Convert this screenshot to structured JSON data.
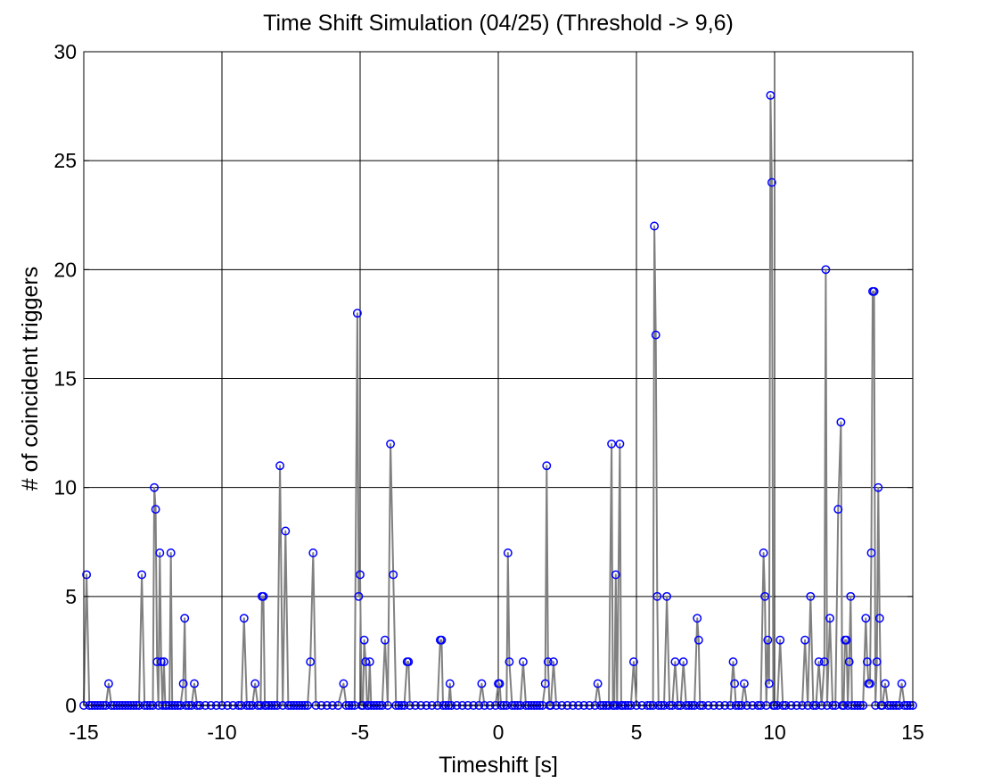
{
  "chart_data": {
    "type": "line",
    "title": "Time Shift Simulation (04/25) (Threshold -> 9,6)",
    "xlabel": "Timeshift [s]",
    "ylabel": "# of coincident triggers",
    "xlim": [
      -15,
      15
    ],
    "ylim": [
      0,
      30
    ],
    "x_ticks": [
      -15,
      -10,
      -5,
      0,
      5,
      10,
      15
    ],
    "y_ticks": [
      0,
      5,
      10,
      15,
      20,
      25,
      30
    ],
    "x_tick_labels": [
      "-15",
      "-10",
      "-5",
      "0",
      "5",
      "10",
      "15"
    ],
    "y_tick_labels": [
      "0",
      "5",
      "10",
      "15",
      "20",
      "25",
      "30"
    ],
    "grid": true,
    "legend": "none",
    "colors": {
      "line": "#808080",
      "marker": "#0000ff",
      "grid": "#000000"
    },
    "series": [
      {
        "marker": "circle",
        "points": [
          [
            -15.0,
            0
          ],
          [
            -14.9,
            6
          ],
          [
            -14.8,
            0
          ],
          [
            -14.7,
            0
          ],
          [
            -14.6,
            0
          ],
          [
            -14.5,
            0
          ],
          [
            -14.4,
            0
          ],
          [
            -14.3,
            0
          ],
          [
            -14.2,
            0
          ],
          [
            -14.1,
            1
          ],
          [
            -14.0,
            0
          ],
          [
            -13.9,
            0
          ],
          [
            -13.8,
            0
          ],
          [
            -13.7,
            0
          ],
          [
            -13.6,
            0
          ],
          [
            -13.5,
            0
          ],
          [
            -13.4,
            0
          ],
          [
            -13.3,
            0
          ],
          [
            -13.2,
            0
          ],
          [
            -13.1,
            0
          ],
          [
            -13.0,
            0
          ],
          [
            -12.9,
            6
          ],
          [
            -12.8,
            0
          ],
          [
            -12.7,
            0
          ],
          [
            -12.6,
            0
          ],
          [
            -12.5,
            0
          ],
          [
            -12.45,
            10
          ],
          [
            -12.4,
            9
          ],
          [
            -12.35,
            2
          ],
          [
            -12.3,
            0
          ],
          [
            -12.25,
            7
          ],
          [
            -12.2,
            2
          ],
          [
            -12.15,
            0
          ],
          [
            -12.1,
            2
          ],
          [
            -12.05,
            0
          ],
          [
            -12.0,
            0
          ],
          [
            -11.9,
            0
          ],
          [
            -11.85,
            7
          ],
          [
            -11.8,
            0
          ],
          [
            -11.7,
            0
          ],
          [
            -11.6,
            0
          ],
          [
            -11.5,
            0
          ],
          [
            -11.4,
            1
          ],
          [
            -11.35,
            4
          ],
          [
            -11.3,
            0
          ],
          [
            -11.2,
            0
          ],
          [
            -11.1,
            0
          ],
          [
            -11.0,
            1
          ],
          [
            -10.9,
            0
          ],
          [
            -10.8,
            0
          ],
          [
            -10.6,
            0
          ],
          [
            -10.4,
            0
          ],
          [
            -10.2,
            0
          ],
          [
            -10.0,
            0
          ],
          [
            -9.8,
            0
          ],
          [
            -9.6,
            0
          ],
          [
            -9.4,
            0
          ],
          [
            -9.3,
            0
          ],
          [
            -9.2,
            4
          ],
          [
            -9.1,
            0
          ],
          [
            -9.0,
            0
          ],
          [
            -8.9,
            0
          ],
          [
            -8.8,
            1
          ],
          [
            -8.7,
            0
          ],
          [
            -8.6,
            0
          ],
          [
            -8.55,
            5
          ],
          [
            -8.5,
            5
          ],
          [
            -8.45,
            0
          ],
          [
            -8.4,
            0
          ],
          [
            -8.3,
            0
          ],
          [
            -8.2,
            0
          ],
          [
            -8.1,
            0
          ],
          [
            -8.0,
            0
          ],
          [
            -7.9,
            11
          ],
          [
            -7.8,
            0
          ],
          [
            -7.7,
            8
          ],
          [
            -7.6,
            0
          ],
          [
            -7.5,
            0
          ],
          [
            -7.4,
            0
          ],
          [
            -7.3,
            0
          ],
          [
            -7.2,
            0
          ],
          [
            -7.1,
            0
          ],
          [
            -7.0,
            0
          ],
          [
            -6.9,
            0
          ],
          [
            -6.8,
            2
          ],
          [
            -6.7,
            7
          ],
          [
            -6.6,
            0
          ],
          [
            -6.4,
            0
          ],
          [
            -6.2,
            0
          ],
          [
            -6.0,
            0
          ],
          [
            -5.8,
            0
          ],
          [
            -5.6,
            1
          ],
          [
            -5.5,
            0
          ],
          [
            -5.4,
            0
          ],
          [
            -5.3,
            0
          ],
          [
            -5.2,
            0
          ],
          [
            -5.1,
            18
          ],
          [
            -5.05,
            5
          ],
          [
            -5.0,
            6
          ],
          [
            -4.95,
            0
          ],
          [
            -4.9,
            0
          ],
          [
            -4.85,
            3
          ],
          [
            -4.8,
            2
          ],
          [
            -4.75,
            0
          ],
          [
            -4.7,
            0
          ],
          [
            -4.65,
            2
          ],
          [
            -4.6,
            0
          ],
          [
            -4.5,
            0
          ],
          [
            -4.4,
            0
          ],
          [
            -4.3,
            0
          ],
          [
            -4.2,
            0
          ],
          [
            -4.1,
            3
          ],
          [
            -4.0,
            0
          ],
          [
            -3.9,
            12
          ],
          [
            -3.8,
            6
          ],
          [
            -3.7,
            0
          ],
          [
            -3.6,
            0
          ],
          [
            -3.5,
            0
          ],
          [
            -3.4,
            0
          ],
          [
            -3.3,
            2
          ],
          [
            -3.25,
            2
          ],
          [
            -3.2,
            0
          ],
          [
            -3.0,
            0
          ],
          [
            -2.8,
            0
          ],
          [
            -2.6,
            0
          ],
          [
            -2.4,
            0
          ],
          [
            -2.2,
            0
          ],
          [
            -2.1,
            3
          ],
          [
            -2.05,
            3
          ],
          [
            -2.0,
            0
          ],
          [
            -1.9,
            0
          ],
          [
            -1.8,
            0
          ],
          [
            -1.75,
            1
          ],
          [
            -1.7,
            0
          ],
          [
            -1.5,
            0
          ],
          [
            -1.3,
            0
          ],
          [
            -1.1,
            0
          ],
          [
            -0.9,
            0
          ],
          [
            -0.7,
            0
          ],
          [
            -0.6,
            1
          ],
          [
            -0.5,
            0
          ],
          [
            -0.3,
            0
          ],
          [
            -0.1,
            0
          ],
          [
            0.0,
            1
          ],
          [
            0.05,
            1
          ],
          [
            0.1,
            0
          ],
          [
            0.2,
            0
          ],
          [
            0.3,
            0
          ],
          [
            0.35,
            7
          ],
          [
            0.4,
            2
          ],
          [
            0.5,
            0
          ],
          [
            0.6,
            0
          ],
          [
            0.7,
            0
          ],
          [
            0.8,
            0
          ],
          [
            0.9,
            2
          ],
          [
            1.0,
            0
          ],
          [
            1.1,
            0
          ],
          [
            1.2,
            0
          ],
          [
            1.3,
            0
          ],
          [
            1.4,
            0
          ],
          [
            1.5,
            0
          ],
          [
            1.6,
            0
          ],
          [
            1.7,
            1
          ],
          [
            1.75,
            11
          ],
          [
            1.8,
            2
          ],
          [
            1.85,
            0
          ],
          [
            1.9,
            0
          ],
          [
            2.0,
            2
          ],
          [
            2.1,
            0
          ],
          [
            2.3,
            0
          ],
          [
            2.5,
            0
          ],
          [
            2.7,
            0
          ],
          [
            2.9,
            0
          ],
          [
            3.1,
            0
          ],
          [
            3.3,
            0
          ],
          [
            3.5,
            0
          ],
          [
            3.6,
            1
          ],
          [
            3.7,
            0
          ],
          [
            3.8,
            0
          ],
          [
            3.9,
            0
          ],
          [
            4.0,
            0
          ],
          [
            4.1,
            12
          ],
          [
            4.15,
            0
          ],
          [
            4.2,
            0
          ],
          [
            4.25,
            6
          ],
          [
            4.3,
            0
          ],
          [
            4.4,
            12
          ],
          [
            4.45,
            0
          ],
          [
            4.5,
            0
          ],
          [
            4.6,
            0
          ],
          [
            4.7,
            0
          ],
          [
            4.8,
            0
          ],
          [
            4.9,
            2
          ],
          [
            5.0,
            0
          ],
          [
            5.2,
            0
          ],
          [
            5.4,
            0
          ],
          [
            5.5,
            0
          ],
          [
            5.6,
            0
          ],
          [
            5.65,
            22
          ],
          [
            5.7,
            17
          ],
          [
            5.75,
            5
          ],
          [
            5.8,
            0
          ],
          [
            5.9,
            0
          ],
          [
            6.0,
            0
          ],
          [
            6.1,
            5
          ],
          [
            6.2,
            0
          ],
          [
            6.3,
            0
          ],
          [
            6.4,
            2
          ],
          [
            6.5,
            0
          ],
          [
            6.6,
            0
          ],
          [
            6.7,
            2
          ],
          [
            6.8,
            0
          ],
          [
            6.9,
            0
          ],
          [
            7.0,
            0
          ],
          [
            7.1,
            0
          ],
          [
            7.2,
            4
          ],
          [
            7.25,
            3
          ],
          [
            7.3,
            0
          ],
          [
            7.4,
            0
          ],
          [
            7.6,
            0
          ],
          [
            7.8,
            0
          ],
          [
            8.0,
            0
          ],
          [
            8.2,
            0
          ],
          [
            8.4,
            0
          ],
          [
            8.5,
            2
          ],
          [
            8.55,
            1
          ],
          [
            8.6,
            0
          ],
          [
            8.7,
            0
          ],
          [
            8.8,
            0
          ],
          [
            8.9,
            1
          ],
          [
            9.0,
            0
          ],
          [
            9.2,
            0
          ],
          [
            9.4,
            0
          ],
          [
            9.5,
            0
          ],
          [
            9.6,
            7
          ],
          [
            9.65,
            5
          ],
          [
            9.7,
            0
          ],
          [
            9.75,
            3
          ],
          [
            9.8,
            1
          ],
          [
            9.85,
            28
          ],
          [
            9.9,
            24
          ],
          [
            9.95,
            0
          ],
          [
            10.0,
            0
          ],
          [
            10.1,
            0
          ],
          [
            10.2,
            3
          ],
          [
            10.3,
            0
          ],
          [
            10.4,
            0
          ],
          [
            10.6,
            0
          ],
          [
            10.8,
            0
          ],
          [
            11.0,
            0
          ],
          [
            11.1,
            3
          ],
          [
            11.2,
            0
          ],
          [
            11.3,
            5
          ],
          [
            11.4,
            0
          ],
          [
            11.5,
            0
          ],
          [
            11.6,
            2
          ],
          [
            11.7,
            0
          ],
          [
            11.8,
            2
          ],
          [
            11.85,
            20
          ],
          [
            11.9,
            0
          ],
          [
            12.0,
            4
          ],
          [
            12.1,
            0
          ],
          [
            12.2,
            0
          ],
          [
            12.3,
            9
          ],
          [
            12.4,
            13
          ],
          [
            12.45,
            0
          ],
          [
            12.5,
            0
          ],
          [
            12.55,
            3
          ],
          [
            12.6,
            3
          ],
          [
            12.65,
            0
          ],
          [
            12.7,
            2
          ],
          [
            12.75,
            5
          ],
          [
            12.8,
            0
          ],
          [
            12.9,
            0
          ],
          [
            13.0,
            0
          ],
          [
            13.1,
            0
          ],
          [
            13.2,
            0
          ],
          [
            13.3,
            4
          ],
          [
            13.35,
            2
          ],
          [
            13.4,
            1
          ],
          [
            13.45,
            1
          ],
          [
            13.5,
            7
          ],
          [
            13.55,
            19
          ],
          [
            13.6,
            19
          ],
          [
            13.65,
            0
          ],
          [
            13.7,
            2
          ],
          [
            13.75,
            10
          ],
          [
            13.8,
            4
          ],
          [
            13.85,
            0
          ],
          [
            13.9,
            0
          ],
          [
            14.0,
            1
          ],
          [
            14.1,
            0
          ],
          [
            14.2,
            0
          ],
          [
            14.3,
            0
          ],
          [
            14.4,
            0
          ],
          [
            14.5,
            0
          ],
          [
            14.6,
            1
          ],
          [
            14.7,
            0
          ],
          [
            14.8,
            0
          ],
          [
            14.9,
            0
          ],
          [
            15.0,
            0
          ]
        ]
      }
    ]
  }
}
